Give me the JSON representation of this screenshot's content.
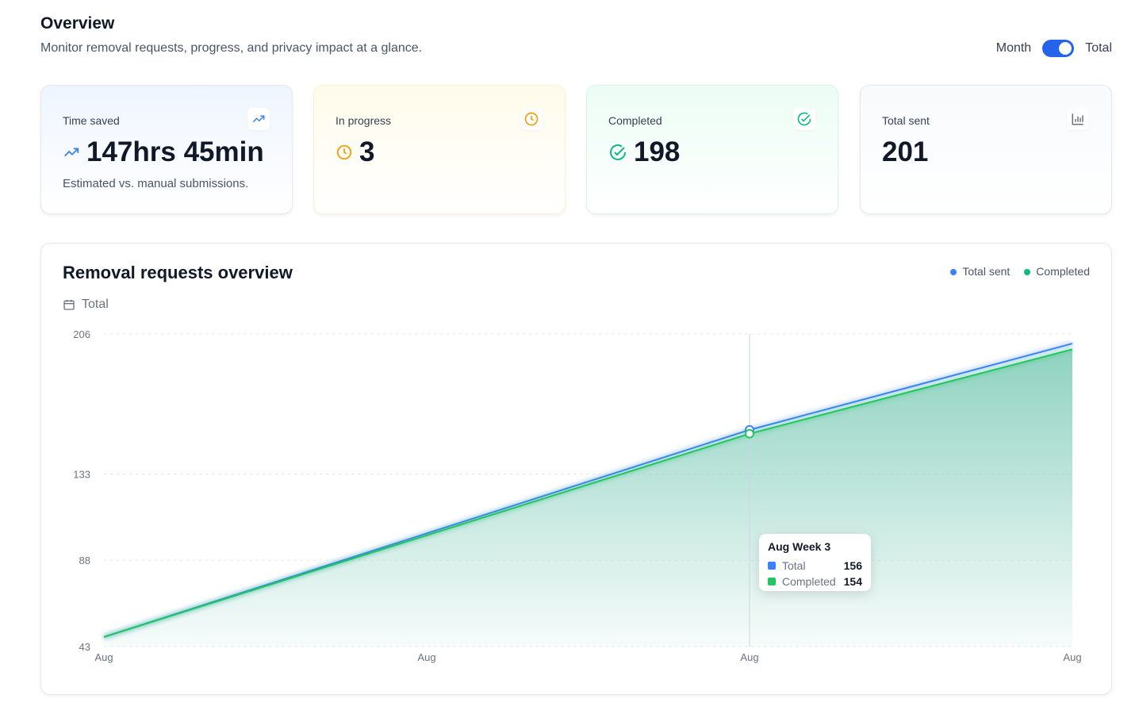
{
  "header": {
    "title": "Overview",
    "subtitle": "Monitor removal requests, progress, and privacy impact at a glance.",
    "toggle_left": "Month",
    "toggle_right": "Total",
    "toggle_on": true
  },
  "cards": [
    {
      "label": "Time saved",
      "value": "147hrs 45min",
      "desc": "Estimated vs. manual submissions.",
      "icon": "trending-up-icon",
      "color": "#3b82f6"
    },
    {
      "label": "In progress",
      "value": "3",
      "icon": "clock-icon",
      "color": "#f59e0b"
    },
    {
      "label": "Completed",
      "value": "198",
      "icon": "check-circle-icon",
      "color": "#10b981"
    },
    {
      "label": "Total sent",
      "value": "201",
      "icon": "bar-chart-icon",
      "color": "#6b7280"
    }
  ],
  "panel": {
    "title": "Removal requests overview",
    "range": "Total"
  },
  "chart_data": {
    "type": "area",
    "categories": [
      "Aug",
      "Aug",
      "Aug",
      "Aug"
    ],
    "series": [
      {
        "name": "Total sent",
        "color": "#3b82f6",
        "values": [
          48,
          102,
          156,
          201
        ]
      },
      {
        "name": "Completed",
        "color": "#22c55e",
        "values": [
          48,
          101,
          154,
          198
        ]
      }
    ],
    "yticks": [
      206,
      133,
      88,
      43
    ],
    "ylim": [
      43,
      206
    ],
    "grid": true,
    "legend": "top-right"
  },
  "tooltip": {
    "title": "Aug Week 3",
    "rows": [
      {
        "name": "Total",
        "value": "156",
        "color": "#3b82f6"
      },
      {
        "name": "Completed",
        "value": "154",
        "color": "#22c55e"
      }
    ]
  }
}
